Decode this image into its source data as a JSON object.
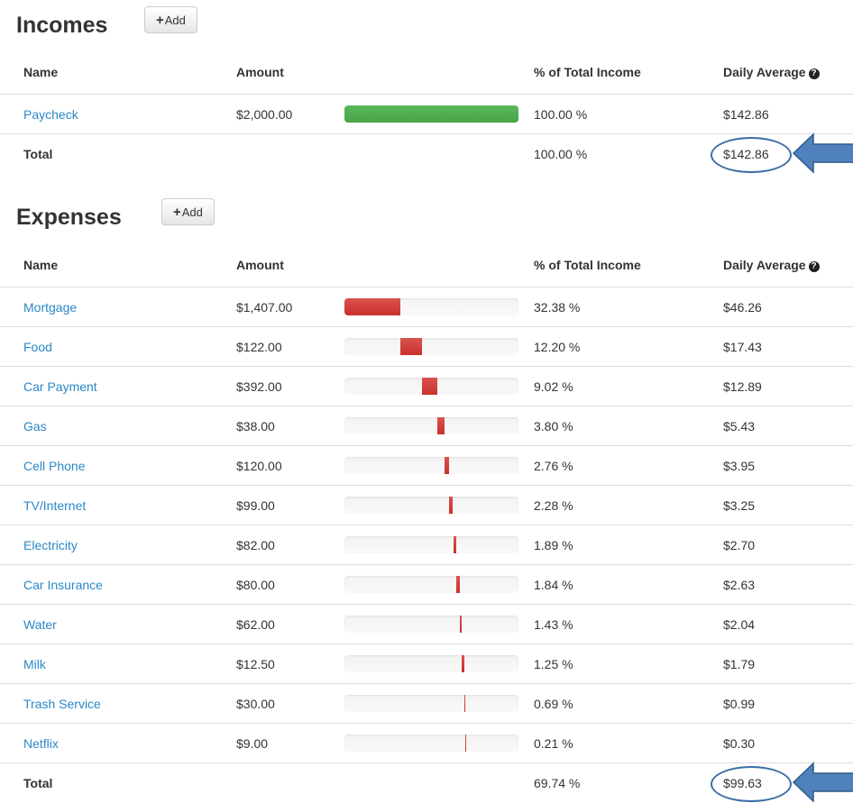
{
  "incomes": {
    "title": "Incomes",
    "add_label": "Add",
    "columns": [
      "Name",
      "Amount",
      "% of Total Income",
      "Daily Average"
    ],
    "rows": [
      {
        "name": "Paycheck",
        "amount": "$2,000.00",
        "percent": "100.00 %",
        "daily": "$142.86",
        "share": 1.0
      }
    ],
    "total": {
      "label": "Total",
      "percent": "100.00 %",
      "daily": "$142.86"
    }
  },
  "expenses": {
    "title": "Expenses",
    "add_label": "Add",
    "columns": [
      "Name",
      "Amount",
      "% of Total Income",
      "Daily Average"
    ],
    "rows": [
      {
        "name": "Mortgage",
        "amount": "$1,407.00",
        "percent": "32.38 %",
        "daily": "$46.26",
        "share": 0.3238
      },
      {
        "name": "Food",
        "amount": "$122.00",
        "percent": "12.20 %",
        "daily": "$17.43",
        "share": 0.122
      },
      {
        "name": "Car Payment",
        "amount": "$392.00",
        "percent": "9.02 %",
        "daily": "$12.89",
        "share": 0.0902
      },
      {
        "name": "Gas",
        "amount": "$38.00",
        "percent": "3.80 %",
        "daily": "$5.43",
        "share": 0.038
      },
      {
        "name": "Cell Phone",
        "amount": "$120.00",
        "percent": "2.76 %",
        "daily": "$3.95",
        "share": 0.0276
      },
      {
        "name": "TV/Internet",
        "amount": "$99.00",
        "percent": "2.28 %",
        "daily": "$3.25",
        "share": 0.0228
      },
      {
        "name": "Electricity",
        "amount": "$82.00",
        "percent": "1.89 %",
        "daily": "$2.70",
        "share": 0.0189
      },
      {
        "name": "Car Insurance",
        "amount": "$80.00",
        "percent": "1.84 %",
        "daily": "$2.63",
        "share": 0.0184
      },
      {
        "name": "Water",
        "amount": "$62.00",
        "percent": "1.43 %",
        "daily": "$2.04",
        "share": 0.0143
      },
      {
        "name": "Milk",
        "amount": "$12.50",
        "percent": "1.25 %",
        "daily": "$1.79",
        "share": 0.0125
      },
      {
        "name": "Trash Service",
        "amount": "$30.00",
        "percent": "0.69 %",
        "daily": "$0.99",
        "share": 0.0069
      },
      {
        "name": "Netflix",
        "amount": "$9.00",
        "percent": "0.21 %",
        "daily": "$0.30",
        "share": 0.0021
      }
    ],
    "total": {
      "label": "Total",
      "percent": "69.74 %",
      "daily": "$99.63"
    }
  },
  "colors": {
    "income_bar": "#5cb85c",
    "expense_bar": "#d9534f",
    "link": "#2a88c8",
    "annotation": "#3c6ea5",
    "arrow_fill": "#4f81bd"
  },
  "icons": {
    "add": "plus-icon",
    "help": "question-circle-icon",
    "annotation": "left-arrow-icon"
  }
}
